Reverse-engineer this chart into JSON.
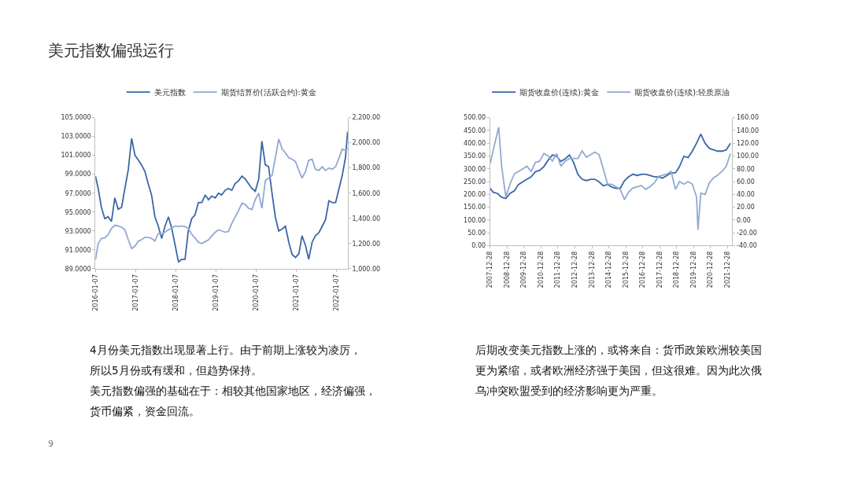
{
  "chart_data": [
    {
      "type": "line",
      "title": "美元指数偏强运行",
      "annotations": [
        "4月份美元指数出现显著上行。由于前期上涨较为凌厉，",
        "所以5月份或有缓和，但趋势保持。",
        "美元指数偏强的基础在于：相较其他国家地区，经济偏强，",
        "货币偏紧，资金回流。",
        "9"
      ],
      "xlim": [
        "2016-01-07",
        "2022-04-22"
      ],
      "xticks": [
        "2016-01-07",
        "2017-01-07",
        "2018-01-07",
        "2019-01-07",
        "2020-01-07",
        "2021-01-07",
        "2022-01-07"
      ],
      "ylim": [
        89,
        105
      ],
      "yticks": [
        {
          "value": 89,
          "label": "89.0000"
        },
        {
          "value": 91,
          "label": "91.0000"
        },
        {
          "value": 93,
          "label": "93.0000"
        },
        {
          "value": 95,
          "label": "95.0000"
        },
        {
          "value": 97,
          "label": "97.0000"
        },
        {
          "value": 99,
          "label": "99.0000"
        },
        {
          "value": 101,
          "label": "101.0000"
        },
        {
          "value": 103,
          "label": "103.0000"
        },
        {
          "value": 105,
          "label": "105.0000"
        }
      ],
      "y2lim": [
        1000,
        2200
      ],
      "y2ticks": [
        {
          "value": 1000,
          "label": "1,000.00"
        },
        {
          "value": 1200,
          "label": "1,200.00"
        },
        {
          "value": 1400,
          "label": "1,400.00"
        },
        {
          "value": 1600,
          "label": "1,600.00"
        },
        {
          "value": 1800,
          "label": "1,800.00"
        },
        {
          "value": 2000,
          "label": "2,000.00"
        },
        {
          "value": 2200,
          "label": "2,200.00"
        }
      ],
      "legend": "top",
      "marker": "none",
      "line_style": "solid",
      "series": [
        {
          "name": "美元指数",
          "color": "#3b67a6",
          "x": [
            "2016-01-07",
            "2016-02",
            "2016-03",
            "2016-04",
            "2016-05",
            "2016-06",
            "2016-07",
            "2016-08",
            "2016-09",
            "2016-10",
            "2016-11",
            "2016-12",
            "2017-01",
            "2017-02",
            "2017-03",
            "2017-04",
            "2017-05",
            "2017-06",
            "2017-07",
            "2017-08",
            "2017-09",
            "2017-10",
            "2017-11",
            "2017-12",
            "2018-01",
            "2018-02",
            "2018-03",
            "2018-04",
            "2018-05",
            "2018-06",
            "2018-07",
            "2018-08",
            "2018-09",
            "2018-10",
            "2018-11",
            "2018-12",
            "2019-01",
            "2019-02",
            "2019-03",
            "2019-04",
            "2019-05",
            "2019-06",
            "2019-07",
            "2019-08",
            "2019-09",
            "2019-10",
            "2019-11",
            "2019-12",
            "2020-01",
            "2020-02",
            "2020-03",
            "2020-04",
            "2020-05",
            "2020-06",
            "2020-07",
            "2020-08",
            "2020-09",
            "2020-10",
            "2020-11",
            "2020-12",
            "2021-01",
            "2021-02",
            "2021-03",
            "2021-04",
            "2021-05",
            "2021-06",
            "2021-07",
            "2021-08",
            "2021-09",
            "2021-10",
            "2021-11",
            "2021-12",
            "2022-01",
            "2022-02",
            "2022-03",
            "2022-04",
            "2022-04-20"
          ],
          "values": [
            98.8,
            97.5,
            95.5,
            94.3,
            94.5,
            94,
            96.5,
            95.3,
            95.5,
            97.5,
            99.5,
            102.8,
            101,
            100.5,
            100,
            99.3,
            98,
            96.8,
            94.5,
            93.5,
            92.2,
            93.5,
            94.5,
            93.3,
            91.5,
            89.7,
            90,
            90,
            93,
            94.3,
            94.7,
            96,
            96,
            96.8,
            96.3,
            96.7,
            96.5,
            97,
            96.8,
            97.3,
            97.5,
            97.3,
            98,
            98.3,
            98.8,
            98.5,
            98,
            97.5,
            97.2,
            98.5,
            102.5,
            100,
            99.8,
            97,
            94.5,
            93,
            93.2,
            93.5,
            91.8,
            90.5,
            90.2,
            90.6,
            92.5,
            91.5,
            90,
            91.8,
            92.5,
            92.8,
            93.5,
            94.2,
            96.2,
            96,
            96,
            97.5,
            98.8,
            100.8,
            103.5
          ]
        },
        {
          "name": "期货结算价(活跃合约):黄金",
          "color": "#91a9d2",
          "axis": "y2",
          "x": [
            "2016-01-07",
            "2016-02",
            "2016-03",
            "2016-04",
            "2016-05",
            "2016-06",
            "2016-07",
            "2016-08",
            "2016-09",
            "2016-10",
            "2016-11",
            "2016-12",
            "2017-01",
            "2017-02",
            "2017-03",
            "2017-04",
            "2017-05",
            "2017-06",
            "2017-07",
            "2017-08",
            "2017-09",
            "2017-10",
            "2017-11",
            "2017-12",
            "2018-01",
            "2018-02",
            "2018-03",
            "2018-04",
            "2018-05",
            "2018-06",
            "2018-07",
            "2018-08",
            "2018-09",
            "2018-10",
            "2018-11",
            "2018-12",
            "2019-01",
            "2019-02",
            "2019-03",
            "2019-04",
            "2019-05",
            "2019-06",
            "2019-07",
            "2019-08",
            "2019-09",
            "2019-10",
            "2019-11",
            "2019-12",
            "2020-01",
            "2020-02",
            "2020-03",
            "2020-04",
            "2020-05",
            "2020-06",
            "2020-07",
            "2020-08",
            "2020-09",
            "2020-10",
            "2020-11",
            "2020-12",
            "2021-01",
            "2021-02",
            "2021-03",
            "2021-04",
            "2021-05",
            "2021-06",
            "2021-07",
            "2021-08",
            "2021-09",
            "2021-10",
            "2021-11",
            "2021-12",
            "2022-01",
            "2022-02",
            "2022-03",
            "2022-04",
            "2022-04-20"
          ],
          "values": [
            1070,
            1200,
            1240,
            1245,
            1270,
            1320,
            1345,
            1340,
            1330,
            1310,
            1230,
            1160,
            1180,
            1220,
            1230,
            1250,
            1250,
            1240,
            1220,
            1280,
            1275,
            1290,
            1310,
            1320,
            1340,
            1335,
            1340,
            1335,
            1320,
            1275,
            1245,
            1210,
            1200,
            1215,
            1230,
            1260,
            1290,
            1310,
            1300,
            1290,
            1295,
            1360,
            1410,
            1460,
            1520,
            1510,
            1480,
            1470,
            1550,
            1600,
            1480,
            1700,
            1720,
            1740,
            1880,
            2030,
            1950,
            1920,
            1880,
            1870,
            1850,
            1780,
            1720,
            1770,
            1860,
            1870,
            1790,
            1780,
            1810,
            1780,
            1800,
            1790,
            1810,
            1880,
            1950,
            1940,
            1950
          ]
        }
      ]
    },
    {
      "type": "line",
      "annotations": [
        "后期改变美元指数上涨的，或将来自：货币政策欧洲较美国",
        "更为紧缩，或者欧洲经济强于美国，但这很难。因为此次俄",
        "乌冲突欧盟受到的经济影响更为严重。"
      ],
      "xlim": [
        "2007-12-28",
        "2022-04-10"
      ],
      "xticks": [
        "2007-12-28",
        "2008-12-28",
        "2009-12-28",
        "2010-12-28",
        "2011-12-28",
        "2012-12-28",
        "2013-12-28",
        "2014-12-28",
        "2015-12-28",
        "2016-12-28",
        "2017-12-28",
        "2018-12-28",
        "2019-12-28",
        "2020-12-28",
        "2021-12-28"
      ],
      "ylim": [
        0,
        500
      ],
      "yticks": [
        {
          "value": 0,
          "label": "0.00"
        },
        {
          "value": 50,
          "label": "50.00"
        },
        {
          "value": 100,
          "label": "100.00"
        },
        {
          "value": 150,
          "label": "150.00"
        },
        {
          "value": 200,
          "label": "200.00"
        },
        {
          "value": 250,
          "label": "250.00"
        },
        {
          "value": 300,
          "label": "300.00"
        },
        {
          "value": 350,
          "label": "350.00"
        },
        {
          "value": 400,
          "label": "400.00"
        },
        {
          "value": 450,
          "label": "450.00"
        },
        {
          "value": 500,
          "label": "500.00"
        }
      ],
      "y2lim": [
        -40,
        160
      ],
      "y2ticks": [
        {
          "value": -40,
          "label": "-40.00"
        },
        {
          "value": -20,
          "label": "-20.00"
        },
        {
          "value": 0,
          "label": "0.00"
        },
        {
          "value": 20,
          "label": "20.00"
        },
        {
          "value": 40,
          "label": "40.00"
        },
        {
          "value": 60,
          "label": "60.00"
        },
        {
          "value": 80,
          "label": "80.00"
        },
        {
          "value": 100,
          "label": "100.00"
        },
        {
          "value": 120,
          "label": "120.00"
        },
        {
          "value": 140,
          "label": "140.00"
        },
        {
          "value": 160,
          "label": "160.00"
        }
      ],
      "legend": "top",
      "marker": "none",
      "line_style": "solid",
      "series": [
        {
          "name": "期货收盘价(连续):黄金",
          "color": "#3b67a6",
          "x": [
            "2007-12-28",
            "2008-03",
            "2008-06",
            "2008-09",
            "2008-12",
            "2009-03",
            "2009-06",
            "2009-09",
            "2009-12",
            "2010-03",
            "2010-06",
            "2010-09",
            "2010-12",
            "2011-03",
            "2011-06",
            "2011-09",
            "2011-12",
            "2012-03",
            "2012-06",
            "2012-09",
            "2012-12",
            "2013-03",
            "2013-06",
            "2013-09",
            "2013-12",
            "2014-03",
            "2014-06",
            "2014-09",
            "2014-12",
            "2015-03",
            "2015-06",
            "2015-09",
            "2015-12",
            "2016-03",
            "2016-06",
            "2016-09",
            "2016-12",
            "2017-03",
            "2017-06",
            "2017-09",
            "2017-12",
            "2018-03",
            "2018-06",
            "2018-09",
            "2018-12",
            "2019-03",
            "2019-06",
            "2019-09",
            "2019-12",
            "2020-03",
            "2020-06",
            "2020-09",
            "2020-12",
            "2021-03",
            "2021-06",
            "2021-09",
            "2021-12",
            "2022-03"
          ],
          "values": [
            224,
            209,
            204,
            189,
            184,
            204,
            214,
            239,
            249,
            259,
            269,
            289,
            294,
            309,
            334,
            354,
            349,
            329,
            339,
            354,
            324,
            279,
            259,
            254,
            259,
            259,
            249,
            234,
            239,
            229,
            224,
            224,
            254,
            269,
            279,
            274,
            279,
            279,
            274,
            269,
            269,
            264,
            274,
            284,
            284,
            309,
            349,
            344,
            369,
            400,
            435,
            400,
            380,
            374,
            369,
            369,
            374,
            400
          ]
        },
        {
          "name": "期货收盘价(连续):轻质原油",
          "color": "#91a9d2",
          "axis": "y2",
          "x": [
            "2007-12-28",
            "2008-03",
            "2008-06",
            "2008-07",
            "2008-09",
            "2008-12",
            "2009-03",
            "2009-06",
            "2009-09",
            "2009-12",
            "2010-03",
            "2010-06",
            "2010-09",
            "2010-12",
            "2011-03",
            "2011-06",
            "2011-09",
            "2011-12",
            "2012-03",
            "2012-06",
            "2012-09",
            "2012-12",
            "2013-03",
            "2013-06",
            "2013-09",
            "2013-12",
            "2014-03",
            "2014-06",
            "2014-09",
            "2014-12",
            "2015-03",
            "2015-06",
            "2015-09",
            "2015-12",
            "2016-03",
            "2016-06",
            "2016-09",
            "2016-12",
            "2017-03",
            "2017-06",
            "2017-09",
            "2017-12",
            "2018-03",
            "2018-06",
            "2018-09",
            "2018-12",
            "2019-03",
            "2019-06",
            "2019-09",
            "2019-12",
            "2020-03",
            "2020-04",
            "2020-06",
            "2020-09",
            "2020-12",
            "2021-03",
            "2021-06",
            "2021-09",
            "2021-12",
            "2022-03"
          ],
          "values": [
            88,
            108,
            136,
            145,
            84,
            36,
            56,
            72,
            76,
            80,
            84,
            76,
            90,
            92,
            104,
            100,
            92,
            104,
            84,
            92,
            96,
            96,
            96,
            108,
            98,
            102,
            106,
            102,
            80,
            56,
            56,
            52,
            48,
            32,
            44,
            50,
            52,
            54,
            48,
            52,
            58,
            68,
            70,
            72,
            76,
            48,
            60,
            56,
            60,
            56,
            36,
            -15,
            42,
            40,
            58,
            66,
            70,
            76,
            84,
            104
          ]
        }
      ]
    }
  ]
}
